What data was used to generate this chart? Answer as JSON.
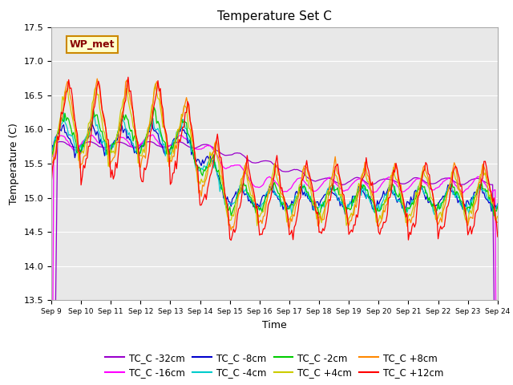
{
  "title": "Temperature Set C",
  "xlabel": "Time",
  "ylabel": "Temperature (C)",
  "ylim": [
    13.5,
    17.5
  ],
  "xlim": [
    0,
    360
  ],
  "x_tick_labels": [
    "Sep 9",
    "Sep 10",
    "Sep 11",
    "Sep 12",
    "Sep 13",
    "Sep 14",
    "Sep 15",
    "Sep 16",
    "Sep 17",
    "Sep 18",
    "Sep 19",
    "Sep 20",
    "Sep 21",
    "Sep 22",
    "Sep 23",
    "Sep 24"
  ],
  "x_tick_positions": [
    0,
    24,
    48,
    72,
    96,
    120,
    144,
    168,
    192,
    216,
    240,
    264,
    288,
    312,
    336,
    360
  ],
  "series_colors": {
    "TC_C -32cm": "#9900cc",
    "TC_C -16cm": "#ff00ff",
    "TC_C -8cm": "#0000cc",
    "TC_C -4cm": "#00cccc",
    "TC_C -2cm": "#00cc00",
    "TC_C +4cm": "#cccc00",
    "TC_C +8cm": "#ff8800",
    "TC_C +12cm": "#ff0000"
  },
  "annotation_text": "WP_met",
  "annotation_bg": "#ffffcc",
  "annotation_border": "#cc8800",
  "annotation_text_color": "#880000",
  "plot_bg": "#e8e8e8",
  "fig_bg": "#ffffff",
  "title_fontsize": 11,
  "axis_fontsize": 9,
  "tick_fontsize": 8,
  "legend_fontsize": 8.5
}
